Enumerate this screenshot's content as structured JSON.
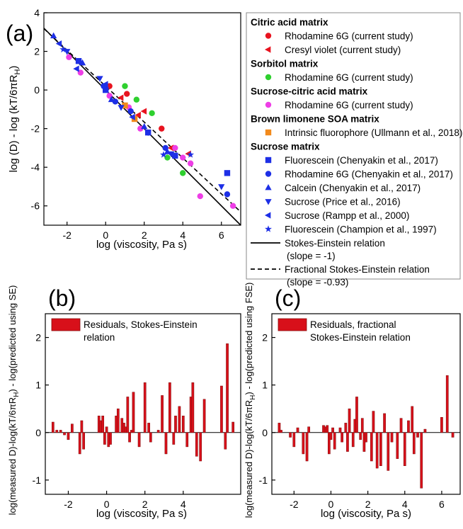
{
  "colors": {
    "citric": "#e8131f",
    "sorbitol": "#2fd02f",
    "sucrose_citric": "#ee3ee6",
    "limonene": "#f28a1c",
    "sucrose": "#1d2fe6",
    "bar": "#d8101a"
  },
  "chart_data": [
    {
      "panel": "(a)",
      "type": "scatter",
      "xlabel": "log (viscosity, Pa s)",
      "ylabel": "log (D) - log (kT/6πR",
      "ylabel_sub": "H",
      "ylabel_end": ")",
      "xlim": [
        -3.2,
        7
      ],
      "ylim": [
        -7,
        4
      ],
      "xticks": [
        -2,
        0,
        2,
        4,
        6
      ],
      "yticks": [
        -6,
        -4,
        -2,
        0,
        2,
        4
      ],
      "legend_position": "right",
      "legend": [
        {
          "type": "header",
          "text": "Citric acid matrix"
        },
        {
          "type": "entry",
          "marker": "circle",
          "color": "citric",
          "text": "Rhodamine 6G (current study)"
        },
        {
          "type": "entry",
          "marker": "tri-left",
          "color": "citric",
          "text": "Cresyl violet (current study)"
        },
        {
          "type": "header",
          "text": "Sorbitol matrix"
        },
        {
          "type": "entry",
          "marker": "circle",
          "color": "sorbitol",
          "text": "Rhodamine 6G (current study)"
        },
        {
          "type": "header",
          "text": "Sucrose-citric acid matrix"
        },
        {
          "type": "entry",
          "marker": "circle",
          "color": "sucrose_citric",
          "text": "Rhodamine 6G (current study)"
        },
        {
          "type": "header",
          "text": "Brown limonene SOA matrix"
        },
        {
          "type": "entry",
          "marker": "square",
          "color": "limonene",
          "text": "Intrinsic fluorophore (Ullmann et al., 2018)"
        },
        {
          "type": "header",
          "text": "Sucrose matrix"
        },
        {
          "type": "entry",
          "marker": "square",
          "color": "sucrose",
          "text": "Fluorescein (Chenyakin et al., 2017)"
        },
        {
          "type": "entry",
          "marker": "circle",
          "color": "sucrose",
          "text": "Rhodamine 6G (Chenyakin et al., 2017)"
        },
        {
          "type": "entry",
          "marker": "tri-up",
          "color": "sucrose",
          "text": "Calcein (Chenyakin et al., 2017)"
        },
        {
          "type": "entry",
          "marker": "tri-down",
          "color": "sucrose",
          "text": "Sucrose (Price et al., 2016)"
        },
        {
          "type": "entry",
          "marker": "tri-left",
          "color": "sucrose",
          "text": "Sucrose (Rampp et al., 2000)"
        },
        {
          "type": "entry",
          "marker": "star",
          "color": "sucrose",
          "text": "Fluorescein (Champion et al., 1997)"
        },
        {
          "type": "line",
          "dash": false,
          "text": "Stokes-Einstein relation",
          "text2": "(slope = -1)"
        },
        {
          "type": "line",
          "dash": true,
          "text": "Fractional Stokes-Einstein relation",
          "text2": "(slope = -0.93)"
        }
      ],
      "lines": [
        {
          "name": "Stokes-Einstein relation",
          "slope": -1,
          "intercept": 0,
          "dash": false
        },
        {
          "name": "Fractional Stokes-Einstein relation",
          "slope": -0.93,
          "intercept": 0.2,
          "dash": true
        }
      ],
      "series": [
        {
          "name": "Citric acid matrix — Rhodamine 6G (current study)",
          "marker": "circle",
          "color": "citric",
          "points": [
            [
              0.2,
              0.2
            ],
            [
              1.1,
              -0.2
            ],
            [
              2.9,
              -2.0
            ]
          ]
        },
        {
          "name": "Citric acid matrix — Cresyl violet (current study)",
          "marker": "tri-left",
          "color": "citric",
          "points": [
            [
              0.8,
              -0.4
            ],
            [
              1.7,
              -1.3
            ],
            [
              3.4,
              -3.0
            ],
            [
              4.3,
              -3.3
            ],
            [
              2.0,
              -1.1
            ]
          ]
        },
        {
          "name": "Sorbitol matrix — Rhodamine 6G (current study)",
          "marker": "circle",
          "color": "sorbitol",
          "points": [
            [
              1.0,
              0.2
            ],
            [
              1.6,
              -0.5
            ],
            [
              2.4,
              -1.2
            ],
            [
              3.2,
              -3.5
            ],
            [
              4.0,
              -4.3
            ]
          ]
        },
        {
          "name": "Sucrose-citric acid matrix — Rhodamine 6G (current study)",
          "marker": "circle",
          "color": "sucrose_citric",
          "points": [
            [
              -1.9,
              1.7
            ],
            [
              -1.3,
              0.9
            ],
            [
              0.2,
              -0.3
            ],
            [
              1.2,
              -0.9
            ],
            [
              1.8,
              -2.0
            ],
            [
              3.6,
              -3.0
            ],
            [
              4.0,
              -3.5
            ],
            [
              4.4,
              -3.8
            ],
            [
              4.9,
              -5.5
            ],
            [
              6.6,
              -6.0
            ]
          ]
        },
        {
          "name": "Brown limonene SOA matrix — Intrinsic fluorophore (Ullmann et al., 2018)",
          "marker": "square",
          "color": "limonene",
          "points": [
            [
              1.0,
              -0.8
            ],
            [
              1.5,
              -1.5
            ]
          ]
        },
        {
          "name": "Sucrose matrix — Fluorescein (Chenyakin et al., 2017)",
          "marker": "square",
          "color": "sucrose",
          "points": [
            [
              -1.4,
              1.5
            ],
            [
              0.0,
              0.0
            ],
            [
              2.2,
              -2.2
            ],
            [
              3.6,
              -3.4
            ],
            [
              6.3,
              -4.3
            ]
          ]
        },
        {
          "name": "Sucrose matrix — Rhodamine 6G (Chenyakin et al., 2017)",
          "marker": "circle",
          "color": "sucrose",
          "points": [
            [
              -0.1,
              0.2
            ],
            [
              0.5,
              -0.6
            ],
            [
              1.3,
              -1.1
            ],
            [
              3.1,
              -3.0
            ],
            [
              6.3,
              -5.4
            ]
          ]
        },
        {
          "name": "Sucrose matrix — Calcein (Chenyakin et al., 2017)",
          "marker": "tri-up",
          "color": "sucrose",
          "points": [
            [
              -2.7,
              2.8
            ],
            [
              -1.2,
              1.4
            ],
            [
              0.3,
              -0.5
            ],
            [
              2.0,
              -1.9
            ],
            [
              3.2,
              -3.2
            ]
          ]
        },
        {
          "name": "Sucrose matrix — Sucrose (Price et al., 2016)",
          "marker": "tri-down",
          "color": "sucrose",
          "points": [
            [
              -2.0,
              2.0
            ],
            [
              -0.3,
              0.6
            ],
            [
              0.8,
              -0.9
            ],
            [
              2.2,
              -2.2
            ],
            [
              3.4,
              -3.3
            ],
            [
              6.0,
              -5.0
            ]
          ]
        },
        {
          "name": "Sucrose matrix — Sucrose (Rampp et al., 2000)",
          "marker": "tri-left",
          "color": "sucrose",
          "points": [
            [
              -2.4,
              2.4
            ],
            [
              -1.5,
              1.1
            ],
            [
              0.0,
              0.3
            ],
            [
              1.4,
              -1.4
            ]
          ]
        },
        {
          "name": "Sucrose matrix — Fluorescein (Champion et al., 1997)",
          "marker": "star",
          "color": "sucrose",
          "points": [
            [
              -2.2,
              2.1
            ],
            [
              3.0,
              -3.35
            ],
            [
              4.4,
              -3.35
            ]
          ]
        }
      ]
    },
    {
      "panel": "(b)",
      "type": "bar",
      "xlabel": "log (viscosity, Pa s)",
      "ylabel": "log(measured D)-log(kT/6πR",
      "ylabel_sub": "H",
      "ylabel_end": ") - log(predicted using SE)",
      "xlim": [
        -3.2,
        7
      ],
      "ylim": [
        -1.3,
        2.5
      ],
      "xticks": [
        -2,
        0,
        2,
        4
      ],
      "yticks": [
        -1,
        0,
        1,
        2
      ],
      "legend_position": "top-left",
      "legend": [
        "Residuals, Stokes-Einstein",
        "relation"
      ],
      "x": [
        -2.8,
        -2.6,
        -2.4,
        -2.2,
        -2.0,
        -1.8,
        -1.6,
        -1.4,
        -1.3,
        -1.2,
        -0.4,
        -0.3,
        -0.2,
        -0.1,
        0.0,
        0.1,
        0.2,
        0.3,
        0.5,
        0.6,
        0.8,
        0.9,
        1.0,
        1.1,
        1.2,
        1.3,
        1.4,
        1.6,
        1.7,
        1.8,
        1.9,
        2.0,
        2.2,
        2.3,
        2.7,
        2.9,
        3.1,
        3.3,
        3.5,
        3.6,
        3.8,
        4.0,
        4.2,
        4.4,
        4.5,
        4.7,
        4.9,
        5.1,
        6.0,
        6.2,
        6.3,
        6.6
      ],
      "values": [
        0.22,
        0.05,
        0.05,
        -0.05,
        -0.15,
        0.18,
        0.0,
        -0.45,
        0.25,
        -0.35,
        0.35,
        0.25,
        0.35,
        -0.25,
        0.12,
        -0.3,
        -0.25,
        0.0,
        0.35,
        0.5,
        0.3,
        0.2,
        0.12,
        0.75,
        -0.2,
        0.05,
        0.85,
        0.0,
        -0.3,
        0.0,
        0.0,
        1.05,
        0.2,
        -0.2,
        0.05,
        0.78,
        -0.45,
        1.05,
        -0.25,
        0.35,
        0.55,
        0.35,
        -0.3,
        0.75,
        1.05,
        -0.5,
        -0.6,
        0.7,
        0.98,
        -0.35,
        1.87,
        0.22
      ]
    },
    {
      "panel": "(c)",
      "type": "bar",
      "xlabel": "log (viscosity, Pa s)",
      "ylabel": "log(measured D)-log(kT/6πR",
      "ylabel_sub": "H",
      "ylabel_end": ") - log(predicted using FSE)",
      "xlim": [
        -3.2,
        7
      ],
      "ylim": [
        -1.3,
        2.5
      ],
      "xticks": [
        -2,
        0,
        2,
        4,
        6
      ],
      "yticks": [
        -1,
        0,
        1,
        2
      ],
      "legend_position": "top-left",
      "legend": [
        "Residuals, fractional",
        "Stokes-Einstein relation"
      ],
      "x": [
        -2.8,
        -2.7,
        -2.2,
        -2.0,
        -1.8,
        -1.5,
        -1.3,
        -1.2,
        -0.4,
        -0.3,
        -0.2,
        -0.1,
        0.0,
        0.1,
        0.2,
        0.3,
        0.5,
        0.6,
        0.8,
        0.9,
        1.0,
        1.1,
        1.2,
        1.3,
        1.4,
        1.6,
        1.7,
        1.8,
        1.9,
        2.0,
        2.2,
        2.3,
        2.5,
        2.7,
        2.9,
        3.1,
        3.3,
        3.5,
        3.6,
        3.8,
        4.0,
        4.2,
        4.4,
        4.5,
        4.7,
        4.9,
        5.1,
        6.0,
        6.2,
        6.3,
        6.6
      ],
      "values": [
        0.2,
        0.05,
        -0.1,
        -0.3,
        0.1,
        -0.45,
        -0.6,
        0.12,
        0.15,
        0.12,
        0.15,
        -0.45,
        -0.15,
        0.1,
        -0.35,
        0.0,
        0.1,
        -0.2,
        0.2,
        -0.4,
        0.5,
        0.0,
        -0.3,
        0.28,
        0.75,
        -0.15,
        0.3,
        -0.4,
        -0.2,
        0.0,
        -0.6,
        0.45,
        -0.75,
        -0.7,
        0.4,
        -0.8,
        -0.2,
        0.0,
        -0.55,
        0.3,
        -0.7,
        0.25,
        0.55,
        -0.45,
        -0.1,
        -1.17,
        0.07,
        0.32,
        0.0,
        1.2,
        -0.1
      ]
    }
  ]
}
